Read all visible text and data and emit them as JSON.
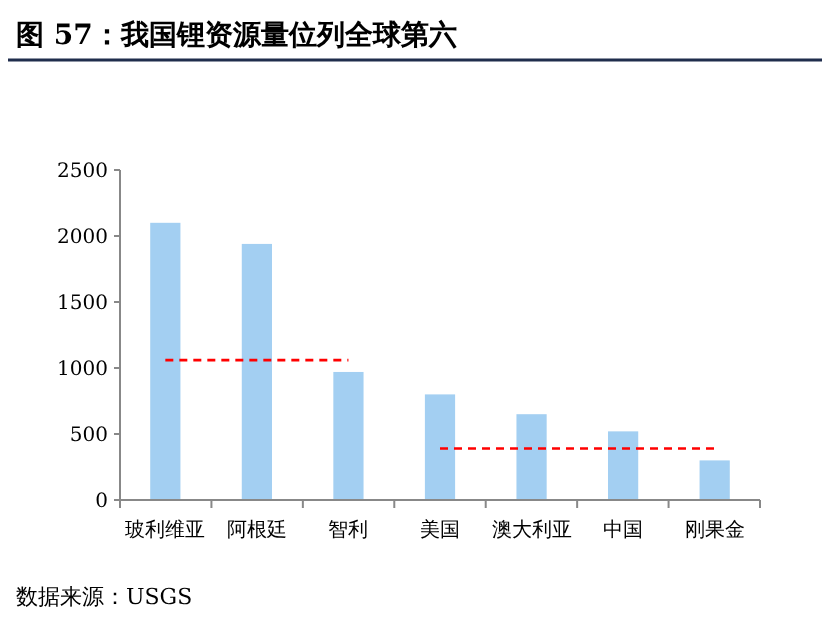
{
  "chart_data": {
    "type": "bar",
    "title": "图 57：我国锂资源量位列全球第六",
    "categories": [
      "玻利维亚",
      "阿根廷",
      "智利",
      "美国",
      "澳大利亚",
      "中国",
      "刚果金"
    ],
    "series": [
      {
        "color": "#a3cff2",
        "values": [
          2100,
          1940,
          970,
          800,
          650,
          520,
          300
        ]
      },
      {
        "type": "line",
        "color": "#ff0000",
        "line_style": "dashed",
        "marker": "none",
        "values": [
          1060,
          1060,
          1060,
          null,
          null,
          null,
          null
        ]
      },
      {
        "type": "line",
        "color": "#ff0000",
        "line_style": "dashed",
        "marker": "none",
        "values": [
          null,
          null,
          null,
          390,
          390,
          390,
          390
        ]
      }
    ],
    "ylim": [
      0,
      2500
    ],
    "yticks": [
      0,
      500,
      1000,
      1500,
      2000,
      2500
    ],
    "grid": false,
    "annotations": [
      "数据来源：USGS"
    ]
  }
}
